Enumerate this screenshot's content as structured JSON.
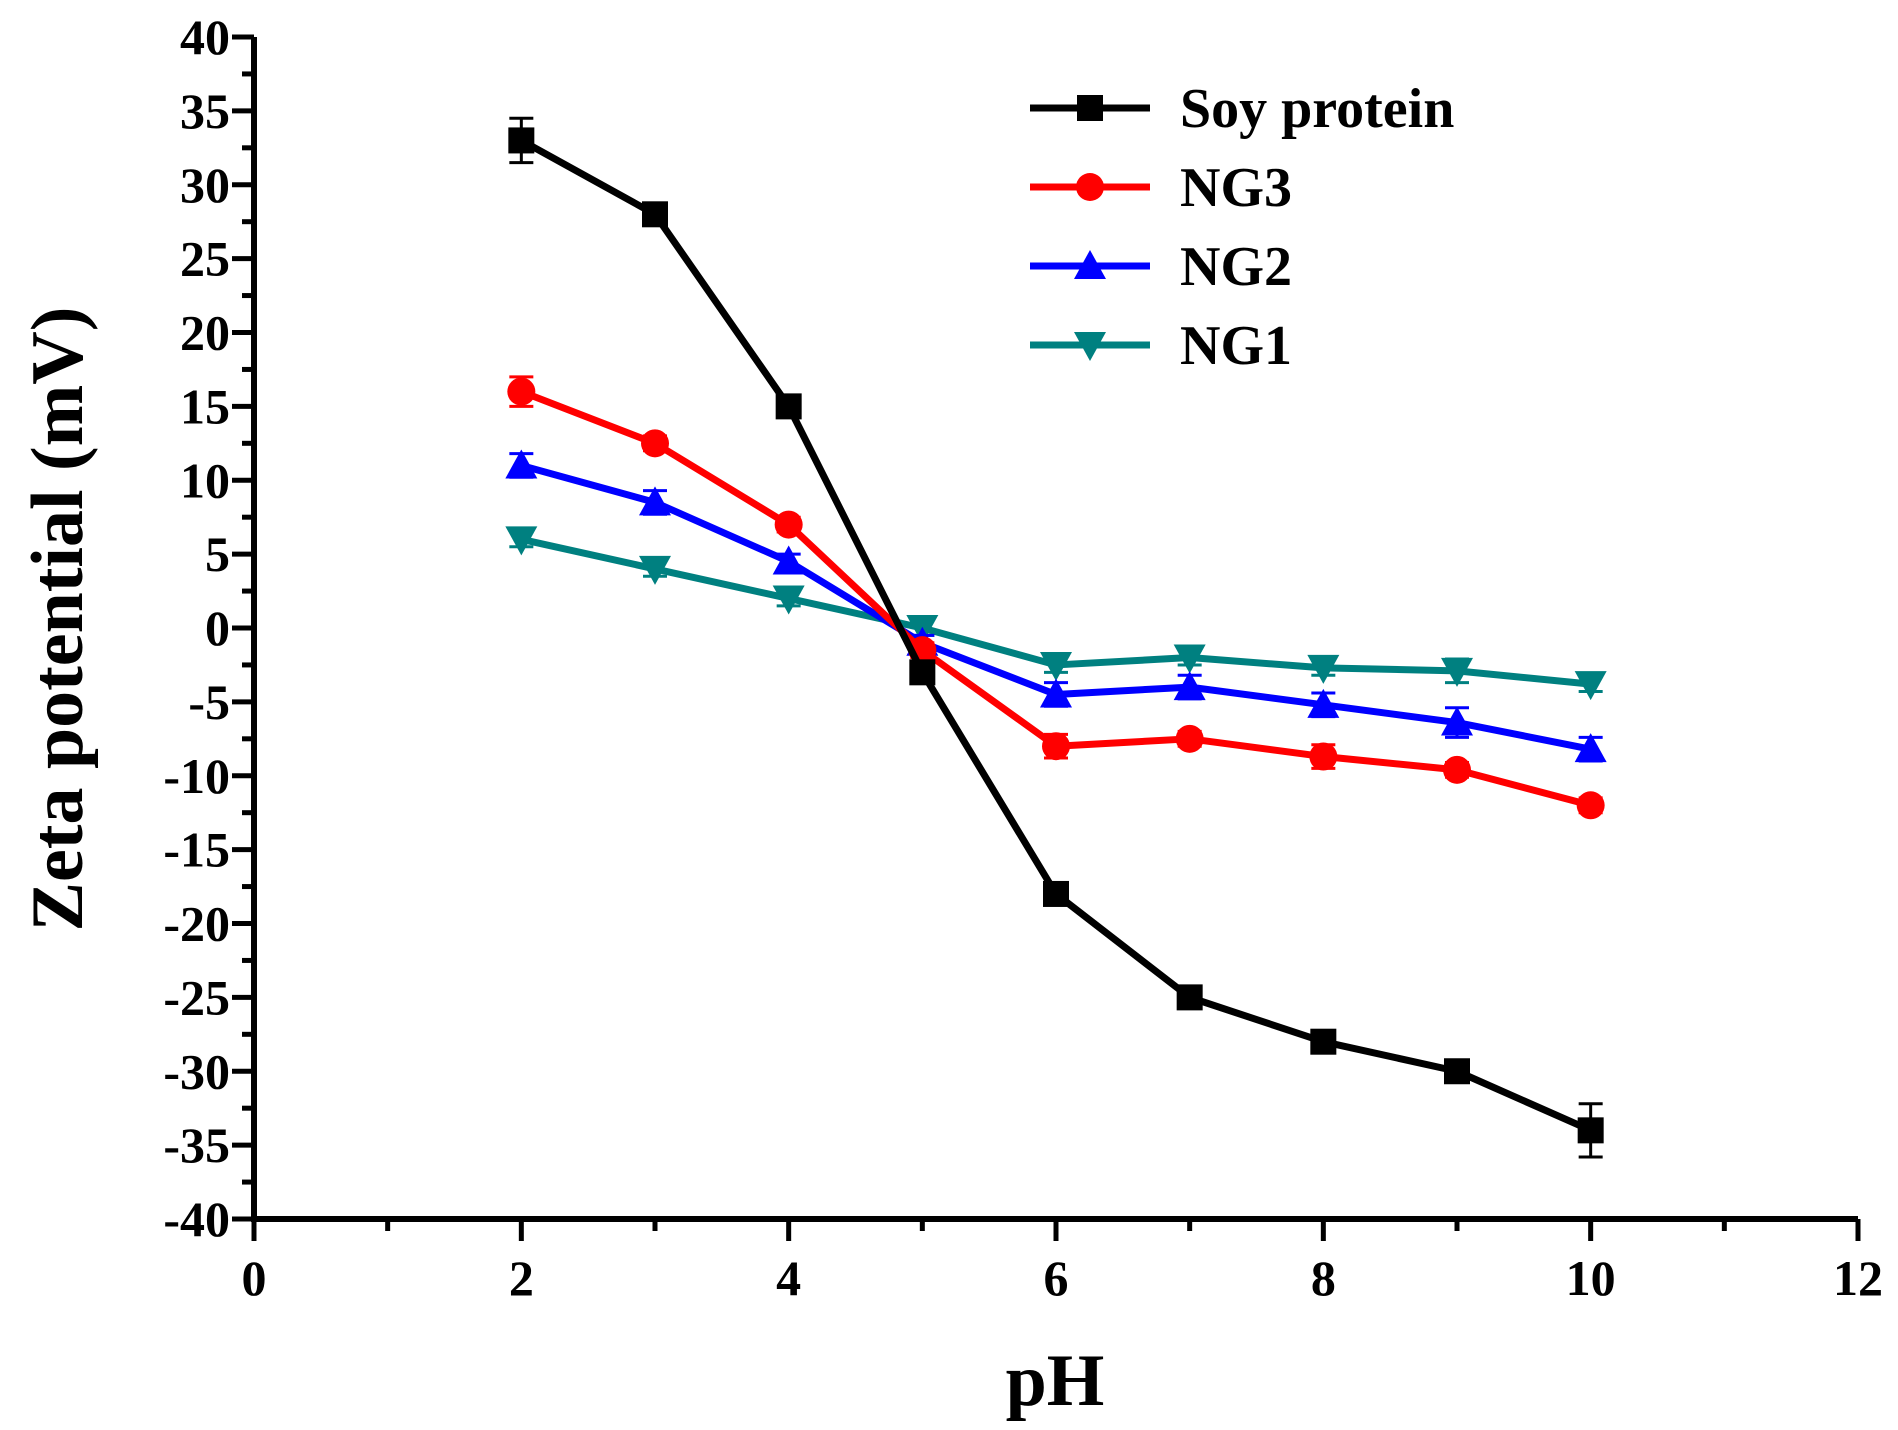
{
  "chart_data": {
    "type": "line",
    "title": "",
    "xlabel": "pH",
    "ylabel": "Zeta potential (mV)",
    "xlim": [
      0,
      12
    ],
    "ylim": [
      -40,
      40
    ],
    "x_ticks": [
      0,
      2,
      4,
      6,
      8,
      10,
      12
    ],
    "y_ticks": [
      -40,
      -35,
      -30,
      -25,
      -20,
      -15,
      -10,
      -5,
      0,
      5,
      10,
      15,
      20,
      25,
      30,
      35,
      40
    ],
    "grid": false,
    "legend_position": "top-right",
    "series": [
      {
        "name": "Soy protein",
        "color": "#000000",
        "marker": "square",
        "x": [
          2,
          3,
          4,
          5,
          6,
          7,
          8,
          9,
          10
        ],
        "values": [
          33,
          28,
          15,
          -3,
          -18,
          -25,
          -28,
          -30,
          -34
        ],
        "errors": [
          1.5,
          0.5,
          0.5,
          0.5,
          0.5,
          0.5,
          0.5,
          0.5,
          1.8
        ]
      },
      {
        "name": "NG3",
        "color": "#ff0000",
        "marker": "circle",
        "x": [
          2,
          3,
          4,
          5,
          6,
          7,
          8,
          9,
          10
        ],
        "values": [
          16,
          12.5,
          7,
          -1.5,
          -8,
          -7.5,
          -8.7,
          -9.6,
          -12
        ],
        "errors": [
          1.0,
          0.5,
          0.5,
          0.5,
          0.8,
          0.5,
          0.8,
          0.5,
          0.5
        ]
      },
      {
        "name": "NG2",
        "color": "#0000ff",
        "marker": "triangle-up",
        "x": [
          2,
          3,
          4,
          5,
          6,
          7,
          8,
          9,
          10
        ],
        "values": [
          11,
          8.5,
          4.5,
          -1,
          -4.5,
          -4,
          -5.2,
          -6.4,
          -8.2
        ],
        "errors": [
          0.8,
          0.8,
          0.5,
          0.5,
          0.8,
          0.8,
          0.8,
          1.0,
          0.8
        ]
      },
      {
        "name": "NG1",
        "color": "#008080",
        "marker": "triangle-down",
        "x": [
          2,
          3,
          4,
          5,
          6,
          7,
          8,
          9,
          10
        ],
        "values": [
          6,
          4,
          2,
          0,
          -2.5,
          -2,
          -2.7,
          -2.9,
          -3.8
        ],
        "errors": [
          0.5,
          0.5,
          0.5,
          0.5,
          0.5,
          0.5,
          0.5,
          0.8,
          0.5
        ]
      }
    ]
  }
}
